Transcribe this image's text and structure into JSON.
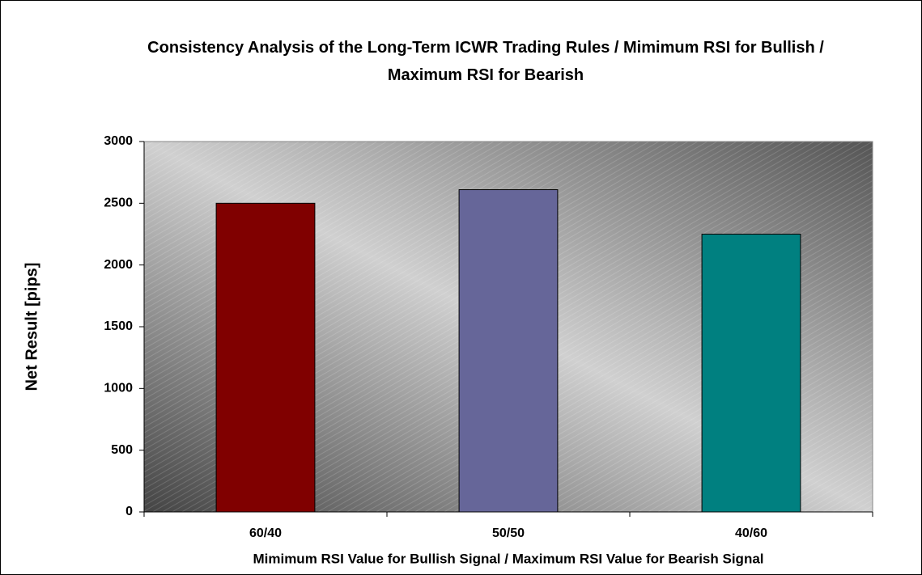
{
  "chart_data": {
    "type": "bar",
    "title": "Consistency Analysis of the Long-Term ICWR Trading Rules / Mimimum RSI for Bullish / Maximum RSI for Bearish",
    "x_label": "Mimimum RSI Value for Bullish Signal / Maximum RSI Value for Bearish Signal",
    "y_label": "Net Result [pips]",
    "categories": [
      "60/40",
      "50/50",
      "40/60"
    ],
    "values": [
      2500,
      2610,
      2250
    ],
    "colors": [
      "#800000",
      "#666699",
      "#008080"
    ],
    "ylim": [
      0,
      3000
    ],
    "yticks": [
      0,
      500,
      1000,
      1500,
      2000,
      2500,
      3000
    ]
  }
}
